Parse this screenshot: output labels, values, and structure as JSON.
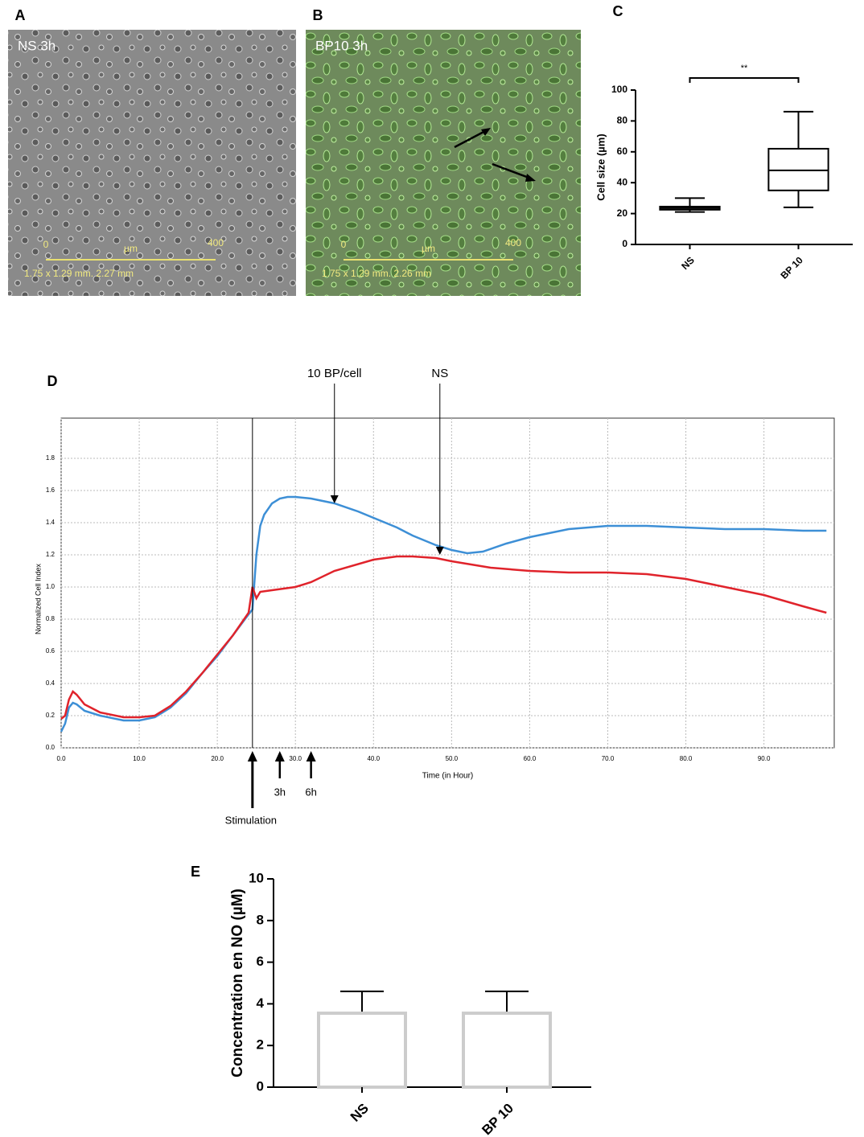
{
  "panel_labels": [
    "A",
    "B",
    "C",
    "D",
    "E"
  ],
  "images": [
    {
      "caption": "NS 3h",
      "scale_start": "0",
      "scale_unit": "µm",
      "scale_end": "400",
      "dimensions": "1.75 x 1.29 mm. 2.27 mm"
    },
    {
      "caption": "BP10 3h",
      "scale_start": "0",
      "scale_unit": "µm",
      "scale_end": "400",
      "dimensions": "1.75 x 1.29 mm. 2.26 mm"
    }
  ],
  "chart_data": [
    {
      "type": "box",
      "y_label": "Cell size (µm)",
      "categories": [
        "NS",
        "BP 10"
      ],
      "boxes": [
        {
          "min": 21,
          "q1": 22.5,
          "median": 23.5,
          "q3": 24.5,
          "max": 30
        },
        {
          "min": 24,
          "q1": 35,
          "median": 48,
          "q3": 62,
          "max": 86
        }
      ],
      "significance": "**",
      "color": "#000000",
      "ylim": [
        0,
        100
      ],
      "yticks": [
        0,
        20,
        40,
        60,
        80,
        100
      ]
    },
    {
      "type": "line",
      "x_label": "Time (in Hour)",
      "y_label": "Normalized Cell Index",
      "xlim": [
        0,
        99
      ],
      "ylim": [
        0,
        2.05
      ],
      "xticks": [
        {
          "value": 0,
          "label": "0.0"
        },
        {
          "value": 10,
          "label": "10.0"
        },
        {
          "value": 20,
          "label": "20.0"
        },
        {
          "value": 30,
          "label": "30.0"
        },
        {
          "value": 40,
          "label": "40.0"
        },
        {
          "value": 50,
          "label": "50.0"
        },
        {
          "value": 60,
          "label": "60.0"
        },
        {
          "value": 70,
          "label": "70.0"
        },
        {
          "value": 80,
          "label": "80.0"
        },
        {
          "value": 90,
          "label": "90.0"
        }
      ],
      "yticks": [
        {
          "value": 0,
          "label": "0.0"
        },
        {
          "value": 0.2,
          "label": "0.2"
        },
        {
          "value": 0.4,
          "label": "0.4"
        },
        {
          "value": 0.6,
          "label": "0.6"
        },
        {
          "value": 0.8,
          "label": "0.8"
        },
        {
          "value": 1,
          "label": "1.0"
        },
        {
          "value": 1.2,
          "label": "1.2"
        },
        {
          "value": 1.4,
          "label": "1.4"
        },
        {
          "value": 1.6,
          "label": "1.6"
        },
        {
          "value": 1.8,
          "label": "1.8"
        }
      ],
      "grid": true,
      "series": [
        {
          "color": "#3d8fd6",
          "x": [
            0,
            0.5,
            1,
            1.5,
            2,
            3,
            5,
            8,
            10,
            12,
            14,
            16,
            18,
            20,
            22,
            24,
            24.5,
            25,
            25.5,
            26,
            27,
            28,
            29,
            30,
            32,
            35,
            38,
            40,
            43,
            45,
            48,
            50,
            52,
            54,
            57,
            60,
            65,
            70,
            75,
            80,
            85,
            90,
            95,
            98
          ],
          "values": [
            0.1,
            0.15,
            0.25,
            0.28,
            0.27,
            0.23,
            0.2,
            0.17,
            0.17,
            0.19,
            0.25,
            0.34,
            0.46,
            0.57,
            0.7,
            0.83,
            0.86,
            1.2,
            1.38,
            1.45,
            1.52,
            1.55,
            1.56,
            1.56,
            1.55,
            1.52,
            1.47,
            1.43,
            1.37,
            1.32,
            1.26,
            1.23,
            1.21,
            1.22,
            1.27,
            1.31,
            1.36,
            1.38,
            1.38,
            1.37,
            1.36,
            1.36,
            1.35,
            1.35
          ]
        },
        {
          "color": "#e0232b",
          "x": [
            0,
            0.5,
            1,
            1.5,
            2,
            3,
            5,
            8,
            10,
            12,
            14,
            16,
            18,
            20,
            22,
            24,
            24.5,
            25,
            25.5,
            27,
            30,
            32,
            35,
            40,
            43,
            45,
            48,
            50,
            55,
            60,
            65,
            70,
            75,
            80,
            85,
            90,
            95,
            98
          ],
          "values": [
            0.18,
            0.2,
            0.3,
            0.35,
            0.33,
            0.27,
            0.22,
            0.19,
            0.19,
            0.2,
            0.26,
            0.35,
            0.46,
            0.58,
            0.7,
            0.84,
            1.0,
            0.93,
            0.97,
            0.98,
            1.0,
            1.03,
            1.1,
            1.17,
            1.19,
            1.19,
            1.18,
            1.16,
            1.12,
            1.1,
            1.09,
            1.09,
            1.08,
            1.05,
            1.0,
            0.95,
            0.88,
            0.84
          ]
        }
      ],
      "annotations": [
        {
          "text": "10 BP/cell",
          "x": 35,
          "y": 1.52
        },
        {
          "text": "NS",
          "x": 48.5,
          "y": 1.2
        }
      ],
      "events": [
        {
          "label": "Stimulation",
          "x": 24.5
        },
        {
          "label": "3h",
          "x": 28
        },
        {
          "label": "6h",
          "x": 32
        }
      ]
    },
    {
      "type": "bar",
      "y_label": "Concentration en NO (µM)",
      "categories": [
        "NS",
        "BP 10"
      ],
      "values": [
        3.55,
        3.55
      ],
      "errors": [
        1.05,
        1.05
      ],
      "color": "#cccccc",
      "ylim": [
        0,
        10
      ],
      "yticks": [
        0,
        2,
        4,
        6,
        8,
        10
      ]
    }
  ]
}
